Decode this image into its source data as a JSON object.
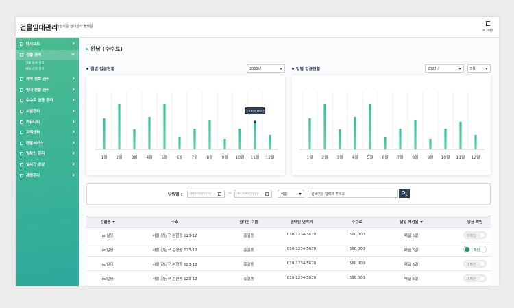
{
  "header": {
    "title": "건물임대관리",
    "subtitle": "가장쉬운 임대관리 플랫폼",
    "logout": "로그아웃"
  },
  "sidebar": {
    "menu": [
      {
        "label": "대시보드"
      },
      {
        "label": "건물 관리",
        "active": true,
        "children": [
          "건물 등록 관리",
          "위탁 신청 관리"
        ]
      },
      {
        "label": "계약 정보 관리"
      },
      {
        "label": "임대 현황 관리"
      },
      {
        "label": "수수료 입금 관리"
      },
      {
        "label": "시설관리"
      },
      {
        "label": "커뮤니티"
      },
      {
        "label": "고객센터"
      },
      {
        "label": "렌탈서비스"
      },
      {
        "label": "임차인 관리"
      },
      {
        "label": "실시간 영상"
      },
      {
        "label": "계정관리"
      }
    ]
  },
  "page_title": "완납 (수수료)",
  "chart_data": [
    {
      "type": "bar",
      "title": "월별 입금현황",
      "filters": [
        "2022년"
      ],
      "categories": [
        "1월",
        "2월",
        "3월",
        "4월",
        "5월",
        "6월",
        "7월",
        "8월",
        "9월",
        "10월",
        "11월",
        "12월"
      ],
      "values": [
        1125000,
        1650000,
        725000,
        1175000,
        1650000,
        450000,
        750000,
        1050000,
        375000,
        750000,
        1000000,
        525000
      ],
      "value_labels": [
        null,
        null,
        null,
        null,
        null,
        null,
        null,
        null,
        null,
        null,
        "1,000,000",
        null
      ],
      "color": "#34bf98",
      "ylim": [
        0,
        2125000
      ],
      "grid": true
    },
    {
      "type": "bar",
      "title": "일별 입금현황",
      "filters": [
        "2022년",
        "5월"
      ],
      "categories": [
        "1월",
        "2월",
        "3월",
        "4월",
        "5월",
        "6월",
        "7월",
        "8월",
        "9월",
        "10월",
        "11월",
        "12월"
      ],
      "values": [
        1125000,
        1650000,
        725000,
        1175000,
        1650000,
        450000,
        750000,
        1050000,
        375000,
        750000,
        1000000,
        525000
      ],
      "color": "#34bf98",
      "ylim": [
        0,
        2125000
      ],
      "grid": true
    }
  ],
  "search": {
    "label": "납입일 :",
    "date_from": "dd/mm/yyyy",
    "separator": "~",
    "date_to": "dd/mm/yyyy",
    "field": "이름",
    "placeholder": "검색어를 입력해 주세요"
  },
  "table": {
    "columns": [
      "건물명",
      "주소",
      "임대인 이름",
      "임대인 연락처",
      "수수료",
      "납입 예정일",
      "송금 확인"
    ],
    "sortable": [
      0,
      5
    ],
    "rows": [
      [
        "oo빌딩",
        "서울 강남구 논현동 123-12",
        "홍길동",
        "010-1234-5678",
        "560,000",
        "매달 5일",
        "미확인"
      ],
      [
        "oo빌딩",
        "서울 강남구 논현동 123-12",
        "홍길동",
        "010-1234-5678",
        "560,000",
        "매달 5일",
        "확인"
      ],
      [
        "oo빌딩",
        "서울 강남구 논현동 123-12",
        "홍길동",
        "010-1234-5678",
        "560,000",
        "매달 5일",
        "미확인"
      ],
      [
        "oo빌딩",
        "서울 강남구 논현동 123-12",
        "홍길동",
        "010-1234-5678",
        "560,000",
        "매달 5일",
        "미확인"
      ]
    ],
    "confirmed": [
      false,
      true,
      false,
      false
    ]
  }
}
